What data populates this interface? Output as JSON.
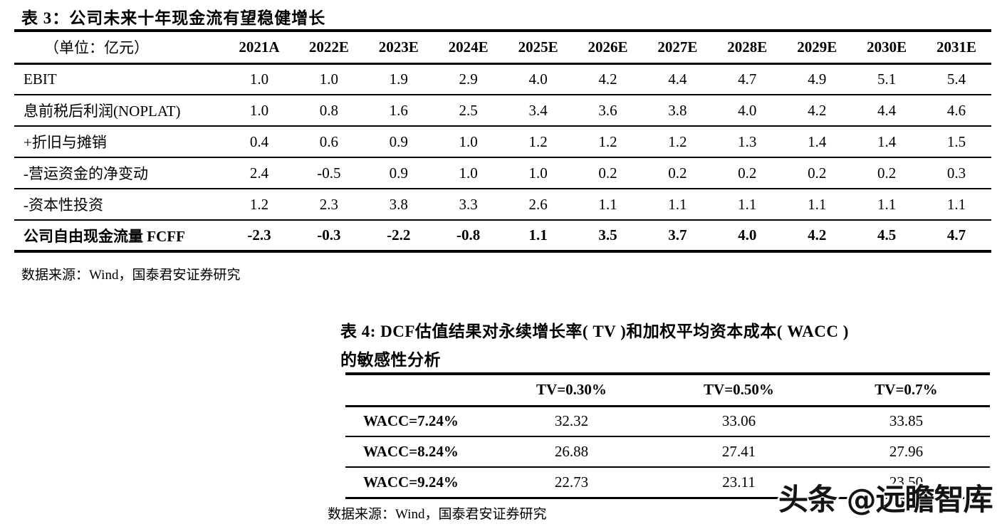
{
  "page": {
    "background_color": "#ffffff",
    "text_color": "#000000",
    "border_color": "#000000"
  },
  "table3": {
    "title": "表 3：公司未来十年现金流有望稳健增长",
    "unit_label": "（单位：亿元）",
    "columns": [
      "2021A",
      "2022E",
      "2023E",
      "2024E",
      "2025E",
      "2026E",
      "2027E",
      "2028E",
      "2029E",
      "2030E",
      "2031E"
    ],
    "rows": [
      {
        "label": "EBIT",
        "bold": false,
        "values": [
          "1.0",
          "1.0",
          "1.9",
          "2.9",
          "4.0",
          "4.2",
          "4.4",
          "4.7",
          "4.9",
          "5.1",
          "5.4"
        ]
      },
      {
        "label": "息前税后利润(NOPLAT)",
        "bold": false,
        "values": [
          "1.0",
          "0.8",
          "1.6",
          "2.5",
          "3.4",
          "3.6",
          "3.8",
          "4.0",
          "4.2",
          "4.4",
          "4.6"
        ]
      },
      {
        "label": "+折旧与摊销",
        "bold": false,
        "values": [
          "0.4",
          "0.6",
          "0.9",
          "1.0",
          "1.2",
          "1.2",
          "1.2",
          "1.3",
          "1.4",
          "1.4",
          "1.5"
        ]
      },
      {
        "label": "-营运资金的净变动",
        "bold": false,
        "values": [
          "2.4",
          "-0.5",
          "0.9",
          "1.0",
          "1.0",
          "0.2",
          "0.2",
          "0.2",
          "0.2",
          "0.2",
          "0.3"
        ]
      },
      {
        "label": "-资本性投资",
        "bold": false,
        "values": [
          "1.2",
          "2.3",
          "3.8",
          "3.3",
          "2.6",
          "1.1",
          "1.1",
          "1.1",
          "1.1",
          "1.1",
          "1.1"
        ]
      },
      {
        "label": "公司自由现金流量 FCFF",
        "bold": true,
        "values": [
          "-2.3",
          "-0.3",
          "-2.2",
          "-0.8",
          "1.1",
          "3.5",
          "3.7",
          "4.0",
          "4.2",
          "4.5",
          "4.7"
        ]
      }
    ],
    "source": "数据来源：Wind，国泰君安证券研究"
  },
  "table4": {
    "title_line1": "表 4: DCF估值结果对永续增长率( TV )和加权平均资本成本( WACC )",
    "title_line2": "的敏感性分析",
    "columns": [
      "TV=0.30%",
      "TV=0.50%",
      "TV=0.7%"
    ],
    "rows": [
      {
        "label": "WACC=7.24%",
        "values": [
          "32.32",
          "33.06",
          "33.85"
        ]
      },
      {
        "label": "WACC=8.24%",
        "values": [
          "26.88",
          "27.41",
          "27.96"
        ]
      },
      {
        "label": "WACC=9.24%",
        "values": [
          "22.73",
          "23.11",
          "23.50"
        ]
      }
    ],
    "source": "数据来源：Wind，国泰君安证券研究"
  },
  "watermark": {
    "text": "头条 @远瞻智库"
  }
}
